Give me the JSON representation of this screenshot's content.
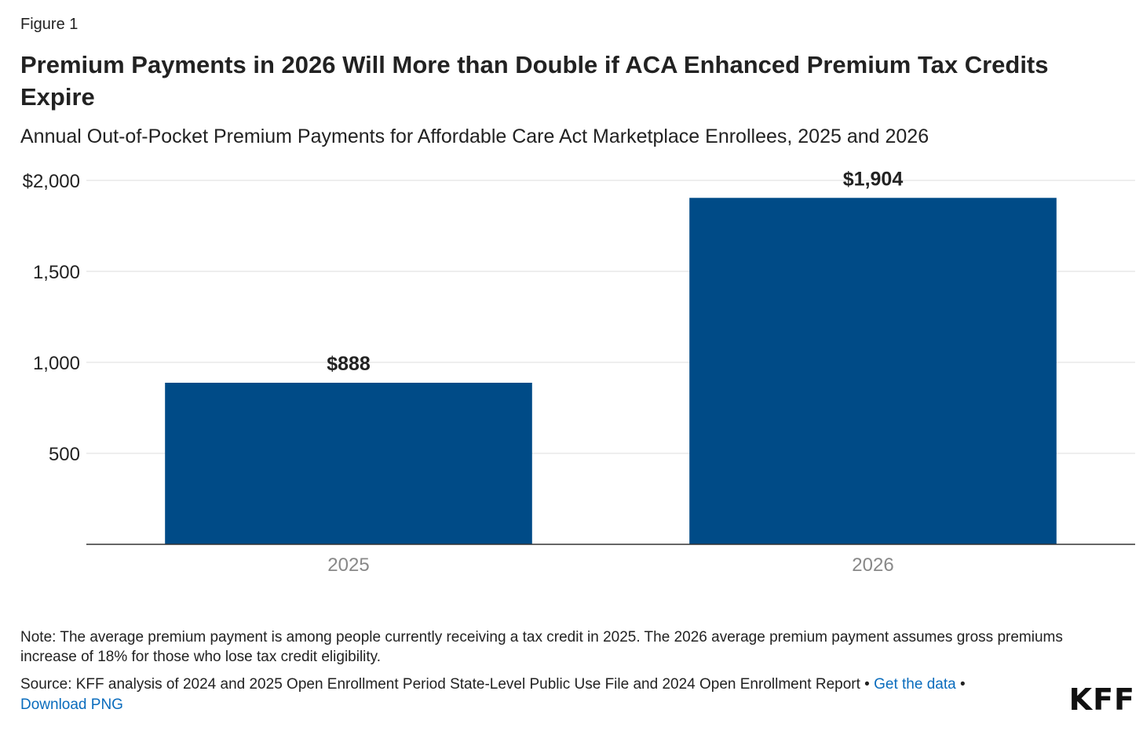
{
  "figure_label": "Figure 1",
  "title": "Premium Payments in 2026 Will More than Double if ACA Enhanced Premium Tax Credits Expire",
  "subtitle": "Annual Out-of-Pocket Premium Payments for Affordable Care Act Marketplace Enrollees, 2025 and 2026",
  "note": "Note: The average premium payment is among people currently receiving a tax credit in 2025. The 2026 average premium payment assumes gross premiums increase of 18% for those who lose tax credit eligibility.",
  "source": {
    "text": "Source: KFF analysis of 2024 and 2025 Open Enrollment Period State-Level Public Use File and 2024 Open Enrollment Report",
    "separator": "•",
    "get_data_link": "Get the data",
    "download_link": "Download PNG"
  },
  "logo": "KFF",
  "colors": {
    "bar": "#004b87",
    "grid": "#dddddd",
    "axis": "#333333",
    "tick_x": "#888888",
    "link": "#0a6cbd"
  },
  "chart_data": {
    "type": "bar",
    "title": "Premium Payments in 2026 Will More than Double if ACA Enhanced Premium Tax Credits Expire",
    "categories": [
      "2025",
      "2026"
    ],
    "values": [
      888,
      1904
    ],
    "data_labels": [
      "$888",
      "$1,904"
    ],
    "ylim": [
      0,
      2000
    ],
    "yticks": [
      500,
      1000,
      1500,
      2000
    ],
    "ytick_labels": [
      "500",
      "1,000",
      "1,500",
      "$2,000"
    ],
    "xlabel": "",
    "ylabel": "",
    "grid": true
  }
}
